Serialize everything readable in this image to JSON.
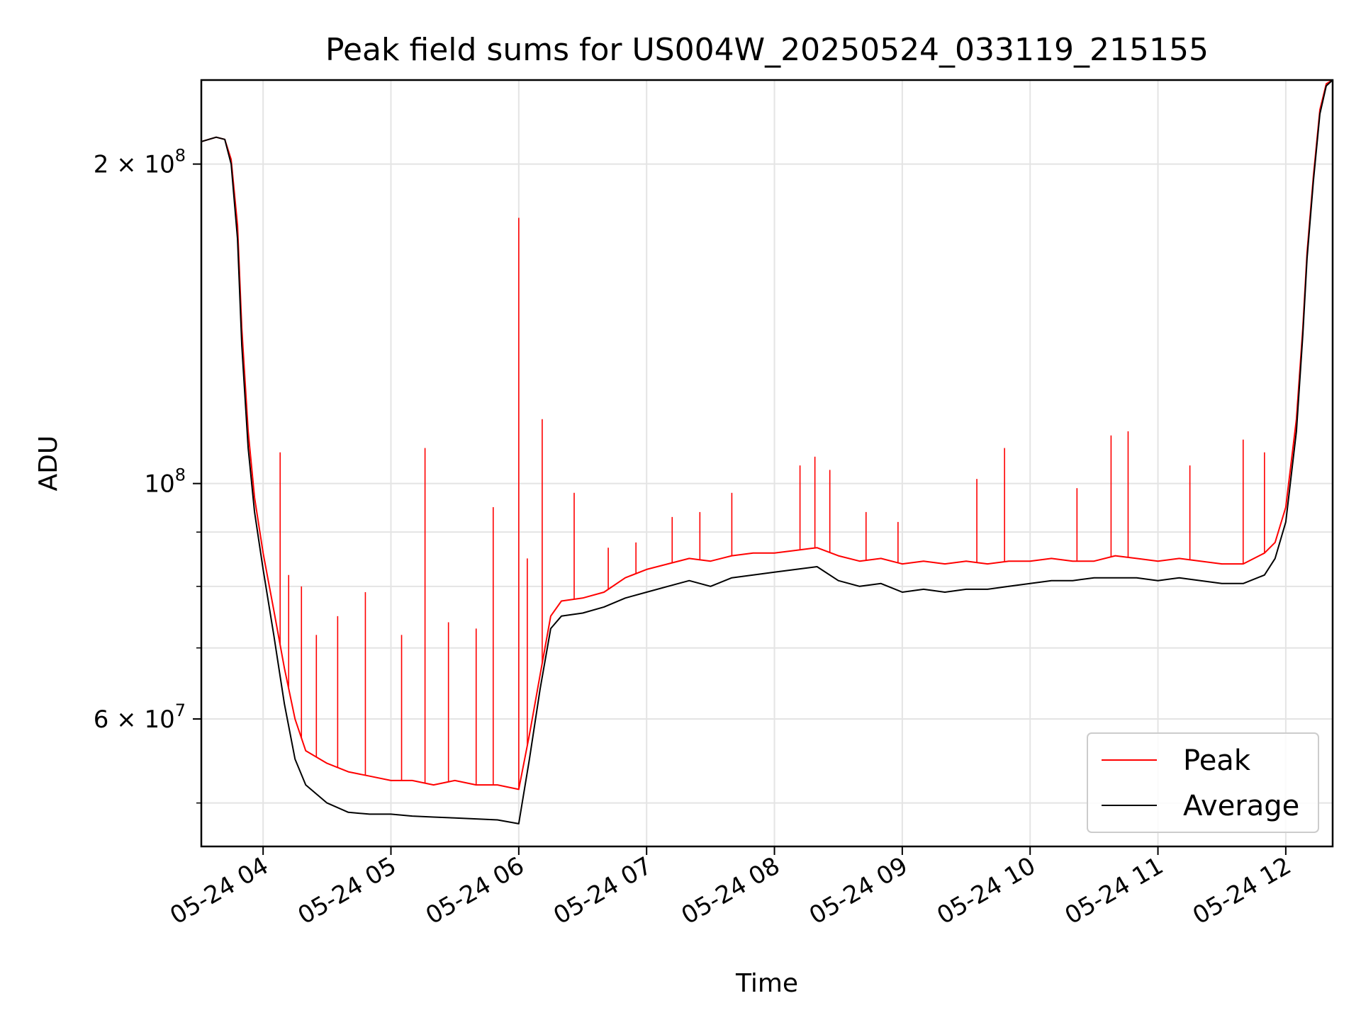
{
  "chart_data": {
    "type": "line",
    "title": "Peak field sums for US004W_20250524_033119_215155",
    "xlabel": "Time",
    "ylabel": "ADU",
    "y_scale": "log",
    "grid": true,
    "legend_position": "lower-right",
    "x_range": [
      "2025-05-24 03:31",
      "2025-05-24 12:22"
    ],
    "ylim": [
      45500000,
      240000000
    ],
    "x_ticks": [
      "05-24 04",
      "05-24 05",
      "05-24 06",
      "05-24 07",
      "05-24 08",
      "05-24 09",
      "05-24 10",
      "05-24 11",
      "05-24 12"
    ],
    "y_tick_labels": [
      {
        "value": 200000000,
        "mantissa": "2",
        "exponent": "8"
      },
      {
        "value": 100000000,
        "mantissa": "",
        "exponent": "8"
      },
      {
        "value": 60000000,
        "mantissa": "6",
        "exponent": "7"
      }
    ],
    "y_minor_ticks": [
      50000000,
      70000000,
      80000000,
      90000000
    ],
    "series": [
      {
        "name": "Peak",
        "color": "#ff0000",
        "x": [
          "03:31",
          "03:38",
          "03:42",
          "03:45",
          "03:48",
          "03:50",
          "03:53",
          "03:56",
          "04:00",
          "04:05",
          "04:10",
          "04:15",
          "04:20",
          "04:30",
          "04:40",
          "04:50",
          "05:00",
          "05:10",
          "05:20",
          "05:30",
          "05:40",
          "05:50",
          "06:00",
          "06:05",
          "06:10",
          "06:15",
          "06:20",
          "06:30",
          "06:40",
          "06:50",
          "07:00",
          "07:10",
          "07:20",
          "07:30",
          "07:40",
          "07:50",
          "08:00",
          "08:10",
          "08:20",
          "08:30",
          "08:40",
          "08:50",
          "09:00",
          "09:10",
          "09:20",
          "09:30",
          "09:40",
          "09:50",
          "10:00",
          "10:10",
          "10:20",
          "10:30",
          "10:40",
          "10:50",
          "11:00",
          "11:10",
          "11:20",
          "11:30",
          "11:40",
          "11:50",
          "11:55",
          "12:00",
          "12:05",
          "12:08",
          "12:10",
          "12:13",
          "12:16",
          "12:19",
          "12:22"
        ],
        "values": [
          210000000,
          212000000,
          211000000,
          202000000,
          175000000,
          140000000,
          112000000,
          97000000,
          86000000,
          76000000,
          67000000,
          60000000,
          56000000,
          54500000,
          53500000,
          53000000,
          52500000,
          52500000,
          52000000,
          52500000,
          52000000,
          52000000,
          51500000,
          58000000,
          66000000,
          75000000,
          77500000,
          78000000,
          79000000,
          81500000,
          83000000,
          84000000,
          85000000,
          84500000,
          85500000,
          86000000,
          86000000,
          86500000,
          87000000,
          85500000,
          84500000,
          85000000,
          84000000,
          84500000,
          84000000,
          84500000,
          84000000,
          84500000,
          84500000,
          85000000,
          84500000,
          84500000,
          85500000,
          85000000,
          84500000,
          85000000,
          84500000,
          84000000,
          84000000,
          86000000,
          88000000,
          95000000,
          115000000,
          140000000,
          165000000,
          195000000,
          225000000,
          238000000,
          240000000
        ],
        "spikes": [
          {
            "x": "04:08",
            "value": 107000000
          },
          {
            "x": "04:12",
            "value": 82000000
          },
          {
            "x": "04:18",
            "value": 80000000
          },
          {
            "x": "04:25",
            "value": 72000000
          },
          {
            "x": "04:35",
            "value": 75000000
          },
          {
            "x": "04:48",
            "value": 79000000
          },
          {
            "x": "05:05",
            "value": 72000000
          },
          {
            "x": "05:16",
            "value": 108000000
          },
          {
            "x": "05:27",
            "value": 74000000
          },
          {
            "x": "05:40",
            "value": 73000000
          },
          {
            "x": "05:48",
            "value": 95000000
          },
          {
            "x": "06:00",
            "value": 178000000
          },
          {
            "x": "06:04",
            "value": 85000000
          },
          {
            "x": "06:11",
            "value": 115000000
          },
          {
            "x": "06:26",
            "value": 98000000
          },
          {
            "x": "06:42",
            "value": 87000000
          },
          {
            "x": "06:55",
            "value": 88000000
          },
          {
            "x": "07:12",
            "value": 93000000
          },
          {
            "x": "07:25",
            "value": 94000000
          },
          {
            "x": "07:40",
            "value": 98000000
          },
          {
            "x": "08:12",
            "value": 104000000
          },
          {
            "x": "08:19",
            "value": 106000000
          },
          {
            "x": "08:26",
            "value": 103000000
          },
          {
            "x": "08:43",
            "value": 94000000
          },
          {
            "x": "08:58",
            "value": 92000000
          },
          {
            "x": "09:35",
            "value": 101000000
          },
          {
            "x": "09:48",
            "value": 108000000
          },
          {
            "x": "10:22",
            "value": 99000000
          },
          {
            "x": "10:38",
            "value": 111000000
          },
          {
            "x": "10:46",
            "value": 112000000
          },
          {
            "x": "11:15",
            "value": 104000000
          },
          {
            "x": "11:40",
            "value": 110000000
          },
          {
            "x": "11:50",
            "value": 107000000
          }
        ]
      },
      {
        "name": "Average",
        "color": "#000000",
        "x": [
          "03:31",
          "03:38",
          "03:42",
          "03:45",
          "03:48",
          "03:50",
          "03:53",
          "03:56",
          "04:00",
          "04:05",
          "04:10",
          "04:15",
          "04:20",
          "04:30",
          "04:40",
          "04:50",
          "05:00",
          "05:10",
          "05:20",
          "05:30",
          "05:40",
          "05:50",
          "06:00",
          "06:05",
          "06:10",
          "06:15",
          "06:20",
          "06:30",
          "06:40",
          "06:50",
          "07:00",
          "07:10",
          "07:20",
          "07:30",
          "07:40",
          "07:50",
          "08:00",
          "08:10",
          "08:20",
          "08:30",
          "08:40",
          "08:50",
          "09:00",
          "09:10",
          "09:20",
          "09:30",
          "09:40",
          "09:50",
          "10:00",
          "10:10",
          "10:20",
          "10:30",
          "10:40",
          "10:50",
          "11:00",
          "11:10",
          "11:20",
          "11:30",
          "11:40",
          "11:50",
          "11:55",
          "12:00",
          "12:05",
          "12:08",
          "12:10",
          "12:13",
          "12:16",
          "12:19",
          "12:22"
        ],
        "values": [
          210000000,
          212000000,
          211000000,
          200000000,
          170000000,
          135000000,
          108000000,
          94000000,
          83000000,
          72000000,
          62000000,
          55000000,
          52000000,
          50000000,
          49000000,
          48800000,
          48800000,
          48600000,
          48500000,
          48400000,
          48300000,
          48200000,
          47800000,
          55000000,
          64000000,
          73000000,
          75000000,
          75500000,
          76500000,
          78000000,
          79000000,
          80000000,
          81000000,
          80000000,
          81500000,
          82000000,
          82500000,
          83000000,
          83500000,
          81000000,
          80000000,
          80500000,
          79000000,
          79500000,
          79000000,
          79500000,
          79500000,
          80000000,
          80500000,
          81000000,
          81000000,
          81500000,
          81500000,
          81500000,
          81000000,
          81500000,
          81000000,
          80500000,
          80500000,
          82000000,
          85000000,
          92000000,
          112000000,
          138000000,
          163000000,
          193000000,
          223000000,
          237000000,
          240000000
        ]
      }
    ]
  }
}
